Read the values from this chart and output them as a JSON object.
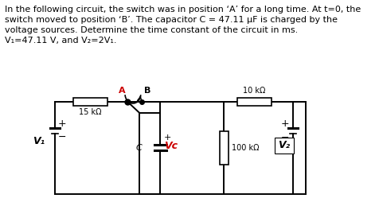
{
  "bg_color": "#ffffff",
  "text_color": "#000000",
  "cc": "#000000",
  "red": "#cc0000",
  "text_lines": [
    "In the following circuit, the switch was in position ‘A’ for a long time. At t=0, the",
    "switch moved to position ‘B’. The capacitor C = 47.11 μF is charged by the",
    "voltage sources. Determine the time constant of the circuit in ms.",
    "V₁=47.11 V, and V₂=2V₁."
  ],
  "lbl_15k": "15 kΩ",
  "lbl_10k": "10 kΩ",
  "lbl_100k": "100 kΩ",
  "lbl_C": "C",
  "lbl_Vc": "Vᴄ",
  "lbl_V1": "V₁",
  "lbl_V2": "V₂",
  "lbl_A": "A",
  "lbl_B": "B",
  "lbl_plus": "+",
  "lbl_minus": "−"
}
